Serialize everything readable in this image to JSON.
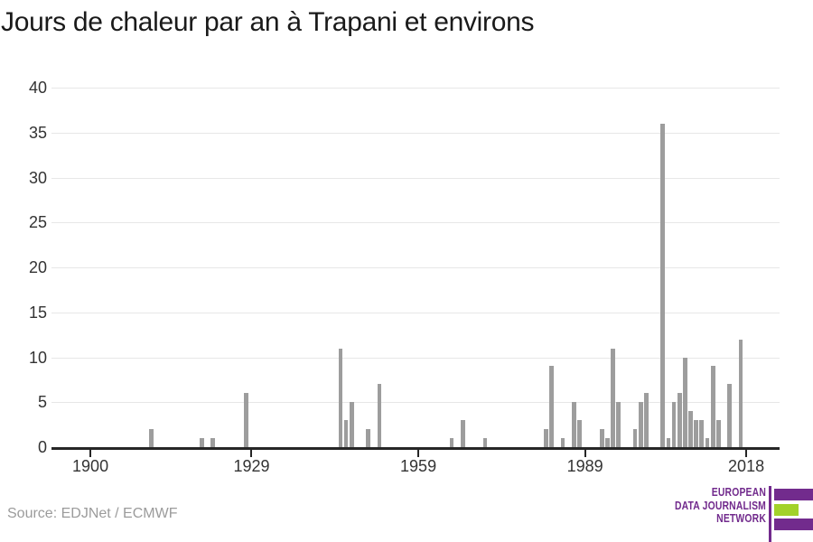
{
  "title": "Jours de chaleur par an à Trapani et environs",
  "source": "Source: EDJNet / ECMWF",
  "logo": {
    "lines": [
      "EUROPEAN",
      "DATA JOURNALISM",
      "NETWORK"
    ],
    "purple": "#722b8d",
    "green": "#a2d22a"
  },
  "chart_data": {
    "type": "bar",
    "title": "Jours de chaleur par an à Trapani et environs",
    "xlabel": "",
    "ylabel": "",
    "x_ticks": [
      1900,
      1929,
      1959,
      1989,
      2018
    ],
    "y_ticks": [
      0,
      5,
      10,
      15,
      20,
      25,
      30,
      35,
      40
    ],
    "xlim": [
      1893,
      2024
    ],
    "ylim": [
      0,
      40
    ],
    "grid": "horizontal",
    "legend": "none",
    "bar_color": "#9d9d9d",
    "axis_color": "#262626",
    "gridline_color": "#e7e7e7",
    "points": [
      {
        "year": 1911,
        "value": 2
      },
      {
        "year": 1920,
        "value": 1
      },
      {
        "year": 1922,
        "value": 1
      },
      {
        "year": 1928,
        "value": 6
      },
      {
        "year": 1945,
        "value": 11
      },
      {
        "year": 1946,
        "value": 3
      },
      {
        "year": 1947,
        "value": 5
      },
      {
        "year": 1950,
        "value": 2
      },
      {
        "year": 1952,
        "value": 7
      },
      {
        "year": 1965,
        "value": 1
      },
      {
        "year": 1967,
        "value": 3
      },
      {
        "year": 1971,
        "value": 1
      },
      {
        "year": 1982,
        "value": 2
      },
      {
        "year": 1983,
        "value": 9
      },
      {
        "year": 1985,
        "value": 1
      },
      {
        "year": 1987,
        "value": 5
      },
      {
        "year": 1988,
        "value": 3
      },
      {
        "year": 1992,
        "value": 2
      },
      {
        "year": 1993,
        "value": 1
      },
      {
        "year": 1994,
        "value": 11
      },
      {
        "year": 1995,
        "value": 5
      },
      {
        "year": 1998,
        "value": 2
      },
      {
        "year": 1999,
        "value": 5
      },
      {
        "year": 2000,
        "value": 6
      },
      {
        "year": 2003,
        "value": 36
      },
      {
        "year": 2004,
        "value": 1
      },
      {
        "year": 2005,
        "value": 5
      },
      {
        "year": 2006,
        "value": 6
      },
      {
        "year": 2007,
        "value": 10
      },
      {
        "year": 2008,
        "value": 4
      },
      {
        "year": 2009,
        "value": 3
      },
      {
        "year": 2010,
        "value": 3
      },
      {
        "year": 2011,
        "value": 1
      },
      {
        "year": 2012,
        "value": 9
      },
      {
        "year": 2013,
        "value": 3
      },
      {
        "year": 2015,
        "value": 7
      },
      {
        "year": 2017,
        "value": 12
      }
    ]
  }
}
